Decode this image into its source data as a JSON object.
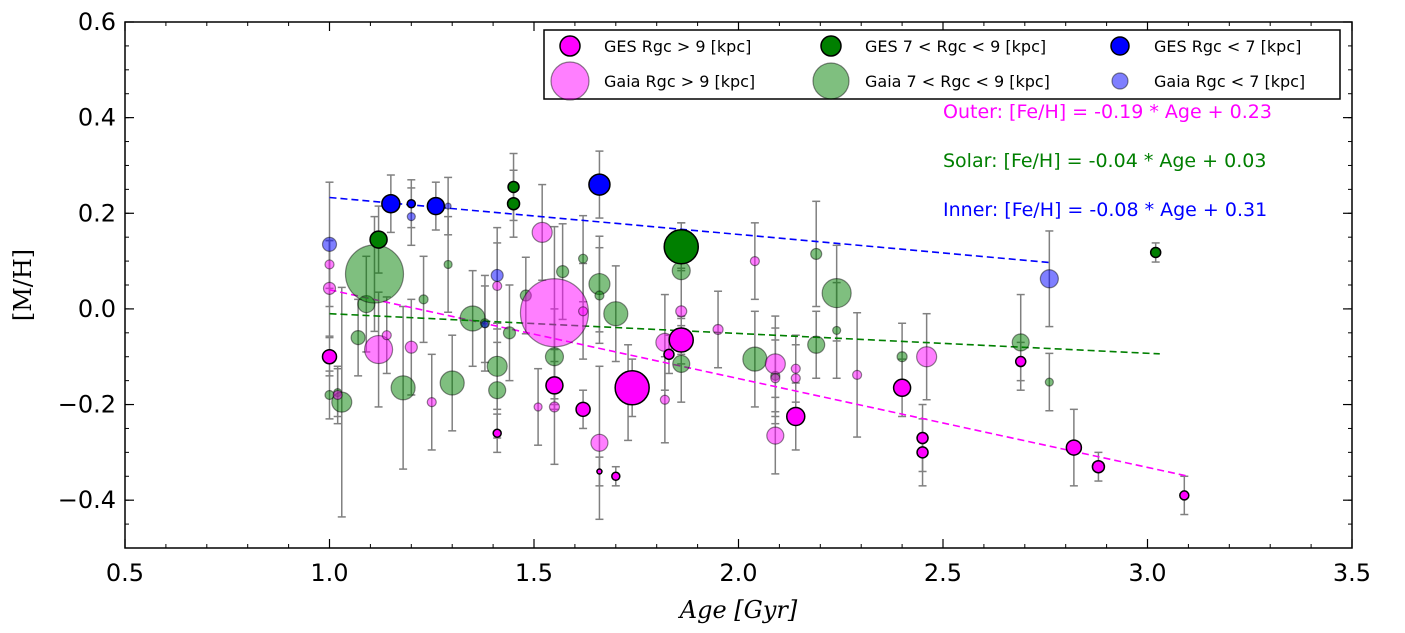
{
  "chart_data": {
    "type": "scatter",
    "xlabel": "Age [Gyr]",
    "ylabel": "[M/H]",
    "xlim": [
      0.5,
      3.5
    ],
    "ylim": [
      -0.5,
      0.6
    ],
    "x_ticks": [
      0.5,
      1.0,
      1.5,
      2.0,
      2.5,
      3.0,
      3.5
    ],
    "x_tick_labels": [
      "0.5",
      "1.0",
      "1.5",
      "2.0",
      "2.5",
      "3.0",
      "3.5"
    ],
    "y_ticks": [
      -0.4,
      -0.2,
      0.0,
      0.2,
      0.4,
      0.6
    ],
    "y_tick_labels": [
      "−0.4",
      "−0.2",
      "0.0",
      "0.2",
      "0.4",
      "0.6"
    ],
    "grid": false,
    "legend_position": "top-right",
    "legend": [
      {
        "label": "GES Rgc > 9 [kpc]",
        "series": "ges_outer"
      },
      {
        "label": "GES 7 < Rgc < 9 [kpc]",
        "series": "ges_solar"
      },
      {
        "label": "GES Rgc < 7 [kpc]",
        "series": "ges_inner"
      },
      {
        "label": "Gaia Rgc > 9 [kpc]",
        "series": "gaia_outer"
      },
      {
        "label": "Gaia 7 < Rgc < 9 [kpc]",
        "series": "gaia_solar"
      },
      {
        "label": "Gaia Rgc < 7 [kpc]",
        "series": "gaia_inner"
      }
    ],
    "colors": {
      "outer": "#ff00ff",
      "solar": "#007f00",
      "inner": "#0000ff",
      "errorbar": "#808080"
    },
    "fits": [
      {
        "label": "Outer: [Fe/H] = -0.19 * Age + 0.23",
        "color": "#ff00ff",
        "x": [
          1.0,
          3.1
        ],
        "y": [
          0.04,
          -0.35
        ]
      },
      {
        "label": "Solar: [Fe/H] = -0.04 * Age + 0.03",
        "color": "#007f00",
        "x": [
          1.0,
          3.03
        ],
        "y": [
          -0.01,
          -0.094
        ]
      },
      {
        "label": "Inner: [Fe/H] = -0.08 * Age + 0.31",
        "color": "#0000ff",
        "x": [
          1.0,
          2.76
        ],
        "y": [
          0.233,
          0.097
        ]
      }
    ],
    "series": [
      {
        "key": "ges_outer",
        "group": "outer",
        "source": "GES",
        "points": [
          [
            1.0,
            -0.1,
            0.04,
            14
          ],
          [
            1.41,
            -0.26,
            0.04,
            8
          ],
          [
            1.55,
            -0.16,
            0.05,
            17
          ],
          [
            1.62,
            -0.21,
            0.04,
            14
          ],
          [
            1.66,
            -0.34,
            0.03,
            5
          ],
          [
            1.7,
            -0.35,
            0.02,
            8
          ],
          [
            1.74,
            -0.165,
            0.06,
            34
          ],
          [
            1.86,
            -0.065,
            0.05,
            24
          ],
          [
            1.83,
            -0.095,
            0.04,
            10
          ],
          [
            2.14,
            -0.225,
            0.07,
            18
          ],
          [
            2.4,
            -0.165,
            0.06,
            17
          ],
          [
            2.45,
            -0.27,
            0.07,
            11
          ],
          [
            2.45,
            -0.3,
            0.07,
            11
          ],
          [
            2.69,
            -0.11,
            0.04,
            10
          ],
          [
            2.82,
            -0.29,
            0.08,
            15
          ],
          [
            2.88,
            -0.33,
            0.03,
            12
          ],
          [
            3.09,
            -0.39,
            0.04,
            9
          ]
        ]
      },
      {
        "key": "ges_solar",
        "group": "solar",
        "source": "GES",
        "points": [
          [
            1.12,
            0.145,
            0.07,
            17
          ],
          [
            1.45,
            0.255,
            0.07,
            11
          ],
          [
            1.45,
            0.22,
            0.07,
            12
          ],
          [
            1.86,
            0.13,
            0.05,
            34
          ],
          [
            3.02,
            0.118,
            0.02,
            10
          ]
        ]
      },
      {
        "key": "ges_inner",
        "group": "inner",
        "source": "GES",
        "points": [
          [
            1.15,
            0.22,
            0.06,
            18
          ],
          [
            1.2,
            0.22,
            0.05,
            8
          ],
          [
            1.26,
            0.215,
            0.05,
            17
          ],
          [
            1.66,
            0.26,
            0.07,
            21
          ]
        ]
      },
      {
        "key": "gaia_outer",
        "group": "outer",
        "source": "Gaia",
        "points": [
          [
            1.0,
            0.093,
            0.05,
            9
          ],
          [
            1.0,
            0.043,
            0.1,
            12
          ],
          [
            1.02,
            -0.18,
            0.06,
            9
          ],
          [
            1.12,
            -0.085,
            0.12,
            28
          ],
          [
            1.14,
            -0.055,
            0.08,
            9
          ],
          [
            1.2,
            -0.08,
            0.1,
            12
          ],
          [
            1.25,
            -0.195,
            0.1,
            9
          ],
          [
            1.41,
            0.048,
            0.09,
            9
          ],
          [
            1.51,
            -0.205,
            0.08,
            8
          ],
          [
            1.52,
            0.16,
            0.1,
            20
          ],
          [
            1.55,
            -0.008,
            0.18,
            68
          ],
          [
            1.55,
            -0.205,
            0.12,
            10
          ],
          [
            1.62,
            -0.005,
            0.1,
            9
          ],
          [
            1.66,
            -0.28,
            0.16,
            17
          ],
          [
            1.73,
            -0.175,
            0.1,
            10
          ],
          [
            1.82,
            -0.07,
            0.1,
            18
          ],
          [
            1.82,
            -0.19,
            0.09,
            9
          ],
          [
            1.86,
            -0.005,
            0.09,
            11
          ],
          [
            1.95,
            -0.043,
            0.08,
            10
          ],
          [
            2.04,
            0.1,
            0.08,
            9
          ],
          [
            2.09,
            -0.115,
            0.1,
            20
          ],
          [
            2.09,
            -0.265,
            0.08,
            17
          ],
          [
            2.09,
            -0.145,
            0.08,
            9
          ],
          [
            2.14,
            -0.145,
            0.07,
            9
          ],
          [
            2.14,
            -0.125,
            0.07,
            9
          ],
          [
            2.29,
            -0.138,
            0.13,
            9
          ],
          [
            2.46,
            -0.1,
            0.09,
            20
          ]
        ]
      },
      {
        "key": "gaia_solar",
        "group": "solar",
        "source": "Gaia",
        "points": [
          [
            1.0,
            -0.18,
            0.05,
            9
          ],
          [
            1.02,
            -0.175,
            0.05,
            8
          ],
          [
            1.03,
            -0.195,
            0.24,
            20
          ],
          [
            1.07,
            -0.06,
            0.08,
            14
          ],
          [
            1.09,
            0.01,
            0.1,
            17
          ],
          [
            1.11,
            0.073,
            0.12,
            58
          ],
          [
            1.18,
            -0.165,
            0.17,
            24
          ],
          [
            1.23,
            0.02,
            0.09,
            9
          ],
          [
            1.29,
            0.093,
            0.1,
            8
          ],
          [
            1.3,
            -0.155,
            0.1,
            24
          ],
          [
            1.35,
            -0.02,
            0.1,
            25
          ],
          [
            1.38,
            -0.03,
            0.1,
            9
          ],
          [
            1.41,
            -0.12,
            0.09,
            20
          ],
          [
            1.41,
            -0.17,
            0.1,
            17
          ],
          [
            1.44,
            -0.05,
            0.1,
            12
          ],
          [
            1.48,
            0.028,
            0.08,
            11
          ],
          [
            1.55,
            -0.1,
            0.1,
            18
          ],
          [
            1.57,
            0.078,
            0.1,
            12
          ],
          [
            1.62,
            0.105,
            0.09,
            9
          ],
          [
            1.66,
            0.052,
            0.1,
            21
          ],
          [
            1.66,
            0.028,
            0.1,
            9
          ],
          [
            1.7,
            -0.01,
            0.1,
            24
          ],
          [
            1.86,
            0.08,
            0.1,
            18
          ],
          [
            1.86,
            -0.115,
            0.08,
            17
          ],
          [
            2.04,
            -0.105,
            0.1,
            24
          ],
          [
            2.09,
            -0.14,
            0.1,
            9
          ],
          [
            2.19,
            0.115,
            0.11,
            11
          ],
          [
            2.19,
            -0.075,
            0.07,
            17
          ],
          [
            2.24,
            0.033,
            0.1,
            29
          ],
          [
            2.24,
            -0.045,
            0.1,
            8
          ],
          [
            2.4,
            -0.1,
            0.07,
            10
          ],
          [
            2.69,
            -0.07,
            0.1,
            17
          ],
          [
            2.76,
            -0.153,
            0.06,
            8
          ]
        ]
      },
      {
        "key": "gaia_inner",
        "group": "inner",
        "source": "Gaia",
        "points": [
          [
            1.0,
            0.135,
            0.13,
            14
          ],
          [
            1.2,
            0.193,
            0.06,
            8
          ],
          [
            1.29,
            0.215,
            0.06,
            6
          ],
          [
            1.41,
            0.07,
            0.1,
            12
          ],
          [
            1.38,
            -0.032,
            0.08,
            7
          ],
          [
            2.76,
            0.063,
            0.1,
            18
          ]
        ]
      }
    ]
  }
}
